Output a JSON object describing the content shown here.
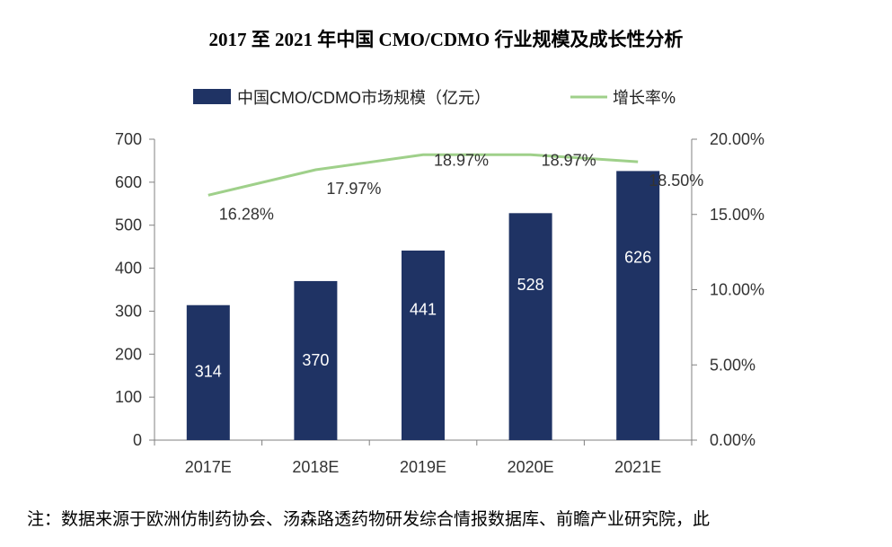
{
  "title": "2017 至 2021 年中国 CMO/CDMO 行业规模及成长性分析",
  "footnote": "注：数据来源于欧洲仿制药协会、汤森路透药物研发综合情报数据库、前瞻产业研究院，此",
  "chart_data": {
    "type": "bar",
    "title": "2017 至 2021 年中国 CMO/CDMO 行业规模及成长性分析",
    "categories": [
      "2017E",
      "2018E",
      "2019E",
      "2020E",
      "2021E"
    ],
    "series": [
      {
        "name": "中国CMO/CDMO市场规模（亿元）",
        "type": "bar",
        "axis": "left",
        "values": [
          314,
          370,
          441,
          528,
          626
        ],
        "labels": [
          "314",
          "370",
          "441",
          "528",
          "626"
        ],
        "color": "#1f3364"
      },
      {
        "name": "增长率%",
        "type": "line",
        "axis": "right",
        "values": [
          16.28,
          17.97,
          18.97,
          18.97,
          18.5
        ],
        "labels": [
          "16.28%",
          "17.97%",
          "18.97%",
          "18.97%",
          "18.50%"
        ],
        "color": "#9fd08a"
      }
    ],
    "y_left": {
      "min": 0,
      "max": 700,
      "ticks": [
        "0",
        "100",
        "200",
        "300",
        "400",
        "500",
        "600",
        "700"
      ]
    },
    "y_right": {
      "min": 0,
      "max": 20,
      "ticks": [
        "0.00%",
        "5.00%",
        "10.00%",
        "15.00%",
        "20.00%"
      ]
    },
    "legend_position": "top",
    "grid": false
  }
}
